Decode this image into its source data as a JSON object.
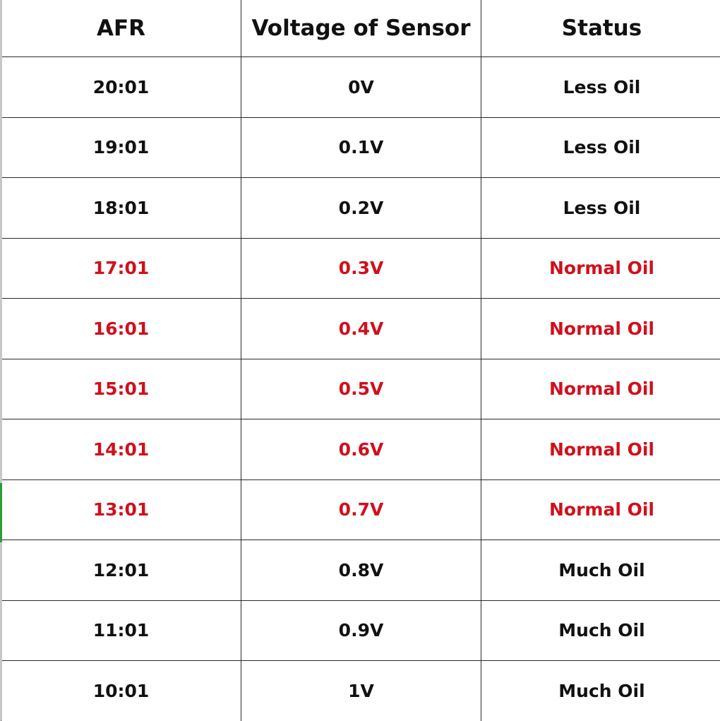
{
  "table": {
    "headers": [
      "AFR",
      "Voltage of Sensor",
      "Status"
    ],
    "rows": [
      {
        "afr": "20:01",
        "voltage": "0V",
        "status": "Less Oil",
        "highlight": false
      },
      {
        "afr": "19:01",
        "voltage": "0.1V",
        "status": "Less Oil",
        "highlight": false
      },
      {
        "afr": "18:01",
        "voltage": "0.2V",
        "status": "Less Oil",
        "highlight": false
      },
      {
        "afr": "17:01",
        "voltage": "0.3V",
        "status": "Normal Oil",
        "highlight": true
      },
      {
        "afr": "16:01",
        "voltage": "0.4V",
        "status": "Normal Oil",
        "highlight": true
      },
      {
        "afr": "15:01",
        "voltage": "0.5V",
        "status": "Normal Oil",
        "highlight": true
      },
      {
        "afr": "14:01",
        "voltage": "0.6V",
        "status": "Normal Oil",
        "highlight": true
      },
      {
        "afr": "13:01",
        "voltage": "0.7V",
        "status": "Normal Oil",
        "highlight": true
      },
      {
        "afr": "12:01",
        "voltage": "0.8V",
        "status": "Much Oil",
        "highlight": false
      },
      {
        "afr": "11:01",
        "voltage": "0.9V",
        "status": "Much Oil",
        "highlight": false
      },
      {
        "afr": "10:01",
        "voltage": "1V",
        "status": "Much Oil",
        "highlight": false
      }
    ]
  },
  "colors": {
    "text": "#111111",
    "highlight_text": "#d0101c",
    "border": "#2a2a2a",
    "left_edge": "#c7c7c7",
    "left_marker": "#2f9a3c"
  }
}
